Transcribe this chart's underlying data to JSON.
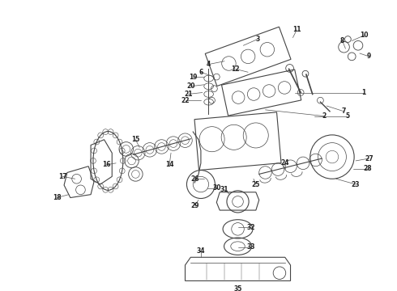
{
  "bg_color": "#ffffff",
  "line_color": "#444444",
  "fill_color": "#f0f0f0",
  "text_color": "#222222",
  "figsize": [
    4.9,
    3.6
  ],
  "dpi": 100
}
